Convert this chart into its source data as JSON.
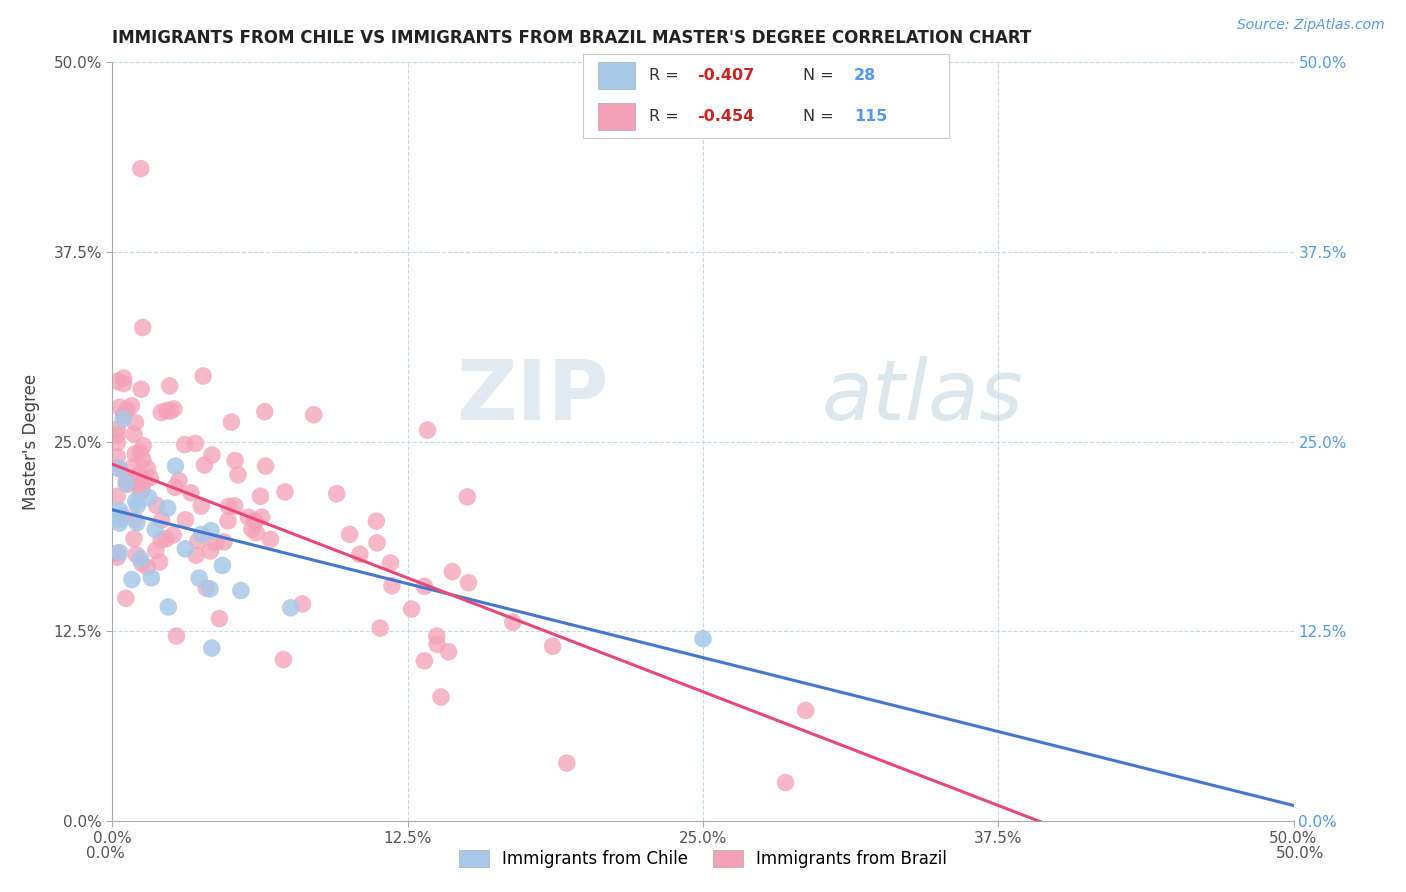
{
  "title": "IMMIGRANTS FROM CHILE VS IMMIGRANTS FROM BRAZIL MASTER'S DEGREE CORRELATION CHART",
  "source_text": "Source: ZipAtlas.com",
  "legend_chile_label": "Immigrants from Chile",
  "legend_brazil_label": "Immigrants from Brazil",
  "ylabel": "Master's Degree",
  "xlim": [
    0.0,
    0.5
  ],
  "ylim": [
    0.0,
    0.5
  ],
  "xtick_vals": [
    0.0,
    0.125,
    0.25,
    0.375,
    0.5
  ],
  "ytick_vals": [
    0.0,
    0.125,
    0.25,
    0.375,
    0.5
  ],
  "chile_color": "#a8c8e8",
  "brazil_color": "#f4a0b8",
  "chile_line_color": "#4477cc",
  "brazil_line_color": "#e84878",
  "chile_R": -0.407,
  "chile_N": 28,
  "brazil_R": -0.454,
  "brazil_N": 115,
  "background_color": "#ffffff",
  "grid_color": "#c0d4e8",
  "right_tick_color": "#5599ee",
  "title_color": "#222222",
  "source_color": "#5599ee",
  "axis_tick_color": "#555555",
  "watermark_zip_color": "#d0dde8",
  "watermark_atlas_color": "#b0c8d8",
  "chile_line_intercept": 0.205,
  "chile_line_slope": -0.39,
  "brazil_line_intercept": 0.235,
  "brazil_line_slope": -0.6
}
